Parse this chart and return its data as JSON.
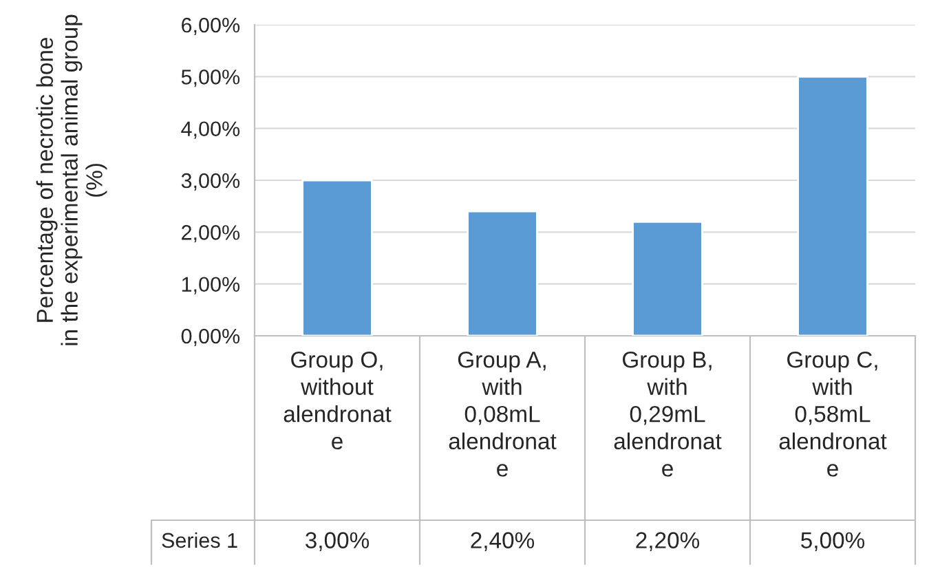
{
  "chart_data": {
    "type": "bar",
    "ylabel": "Percentage of necrotic bone\nin the experimental animal group\n(%)",
    "categories": [
      "Group O, without alendronate",
      "Group A, with 0,08mL alendronate",
      "Group B, with 0,29mL alendronate",
      "Group C, with 0,58mL alendronate"
    ],
    "series": [
      {
        "name": "Series 1",
        "color": "#5b9bd5",
        "values": [
          3.0,
          2.4,
          2.2,
          5.0
        ]
      }
    ],
    "value_labels": [
      "3,00%",
      "2,40%",
      "2,20%",
      "5,00%"
    ],
    "ylim": [
      0,
      6
    ],
    "yticks": [
      {
        "value": 0,
        "label": "0,00%"
      },
      {
        "value": 1,
        "label": "1,00%"
      },
      {
        "value": 2,
        "label": "2,00%"
      },
      {
        "value": 3,
        "label": "3,00%"
      },
      {
        "value": 4,
        "label": "4,00%"
      },
      {
        "value": 5,
        "label": "5,00%"
      },
      {
        "value": 6,
        "label": "6,00%"
      }
    ],
    "grid": "y",
    "legend": false
  }
}
